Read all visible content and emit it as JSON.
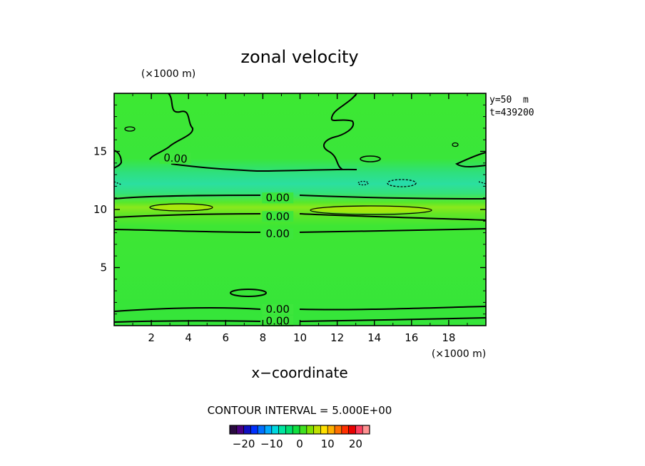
{
  "chart_data": {
    "type": "heatmap",
    "title": "zonal velocity",
    "xlabel": "x−coordinate",
    "x_unit": "(×1000 m)",
    "y_unit": "(×1000 m)",
    "xlim": [
      0,
      20
    ],
    "ylim": [
      0,
      20
    ],
    "x_ticks": [
      2,
      4,
      6,
      8,
      10,
      12,
      14,
      16,
      18
    ],
    "y_ticks": [
      5,
      10,
      15
    ],
    "info_lines": [
      "y=50  m",
      "t=439200"
    ],
    "contour_interval_text": "CONTOUR INTERVAL = 5.000E+00",
    "contour_labels": [
      {
        "text": "0.00",
        "x": 3.3,
        "y": 14.4
      },
      {
        "text": "0.00",
        "x": 8.8,
        "y": 11.0
      },
      {
        "text": "0.00",
        "x": 8.8,
        "y": 9.4
      },
      {
        "text": "0.00",
        "x": 8.8,
        "y": 7.9
      },
      {
        "text": "0.00",
        "x": 8.8,
        "y": 1.4
      },
      {
        "text": "0.00",
        "x": 8.8,
        "y": 0.4
      }
    ],
    "colorbar": {
      "range": [
        -25,
        25
      ],
      "tick_values": [
        -20,
        -10,
        0,
        10,
        20
      ],
      "tick_labels": [
        "−20",
        "−10",
        "0",
        "10",
        "20"
      ],
      "colors": [
        "#2a0a40",
        "#4a0080",
        "#1010c0",
        "#0030ff",
        "#0070ff",
        "#00aaff",
        "#00d8e0",
        "#00e6a0",
        "#00e070",
        "#10e040",
        "#40e020",
        "#80e000",
        "#c0e000",
        "#ffe000",
        "#ffb000",
        "#ff7000",
        "#ff3000",
        "#e80000",
        "#ff4060",
        "#ff9090"
      ]
    }
  }
}
